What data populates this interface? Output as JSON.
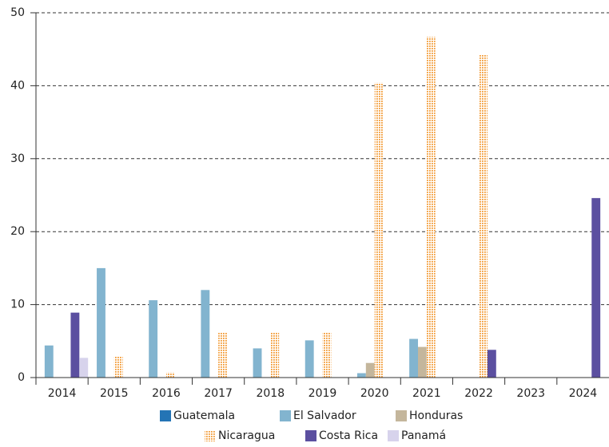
{
  "chart_data": {
    "type": "bar",
    "categories": [
      "2014",
      "2015",
      "2016",
      "2017",
      "2018",
      "2019",
      "2020",
      "2021",
      "2022",
      "2023",
      "2024"
    ],
    "series": [
      {
        "name": "Guatemala",
        "color": "#2474b5",
        "values": [
          null,
          null,
          null,
          null,
          null,
          null,
          null,
          null,
          null,
          null,
          null
        ]
      },
      {
        "name": "El Salvador",
        "color": "#82b4cf",
        "values": [
          4.4,
          15.0,
          10.6,
          12.0,
          4.0,
          5.1,
          0.6,
          5.3,
          null,
          null,
          null
        ]
      },
      {
        "name": "Honduras",
        "color": "#c4b69c",
        "values": [
          null,
          null,
          null,
          null,
          null,
          null,
          2.0,
          4.2,
          null,
          null,
          null
        ]
      },
      {
        "name": "Nicaragua",
        "color": "#f39a34",
        "pattern": "dots",
        "values": [
          null,
          2.9,
          0.7,
          6.2,
          6.2,
          6.2,
          40.4,
          46.7,
          44.2,
          null,
          null
        ]
      },
      {
        "name": "Costa Rica",
        "color": "#5b4fa0",
        "values": [
          8.9,
          null,
          null,
          null,
          null,
          null,
          null,
          null,
          3.8,
          null,
          24.6
        ]
      },
      {
        "name": "Panamá",
        "color": "#d7d3ec",
        "values": [
          2.7,
          null,
          null,
          null,
          null,
          null,
          null,
          null,
          null,
          null,
          null
        ]
      }
    ],
    "ylim": [
      0,
      50
    ],
    "yticks": [
      0,
      10,
      20,
      30,
      40,
      50
    ],
    "grid": true,
    "legend": "bottom"
  }
}
